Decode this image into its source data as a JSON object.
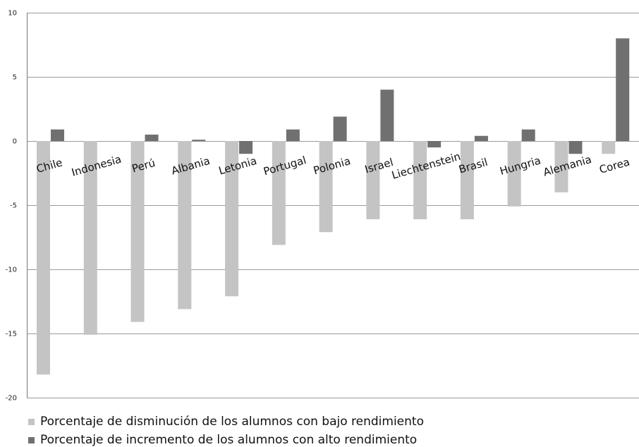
{
  "chart_data": {
    "type": "bar",
    "categories": [
      "Chile",
      "Indonesia",
      "Perú",
      "Albania",
      "Letonia",
      "Portugal",
      "Polonia",
      "Israel",
      "Liechtenstein",
      "Brasil",
      "Hungria",
      "Alemania",
      "Corea"
    ],
    "series": [
      {
        "name": "Porcentaje de disminución de los alumnos con bajo rendimiento",
        "color": "#c4c4c4",
        "values": [
          -18.2,
          -15.1,
          -14.1,
          -13.1,
          -12.1,
          -8.1,
          -7.1,
          -6.1,
          -6.1,
          -6.1,
          -5.1,
          -4.0,
          -1.0
        ]
      },
      {
        "name": "Porcentaje de incremento de los alumnos con alto rendimiento",
        "color": "#707070",
        "values": [
          0.9,
          0.0,
          0.5,
          0.1,
          -1.0,
          0.9,
          1.9,
          4.0,
          -0.5,
          0.4,
          0.9,
          -1.0,
          8.0
        ]
      }
    ],
    "ylim": [
      -20,
      10
    ],
    "yticks": [
      "10",
      "5",
      "0",
      "-5",
      "-10",
      "-15",
      "-20"
    ],
    "ytick_values": [
      10,
      5,
      0,
      -5,
      -10,
      -15,
      -20
    ],
    "gridlines": "horizontal",
    "legend_position": "bottom-left"
  }
}
